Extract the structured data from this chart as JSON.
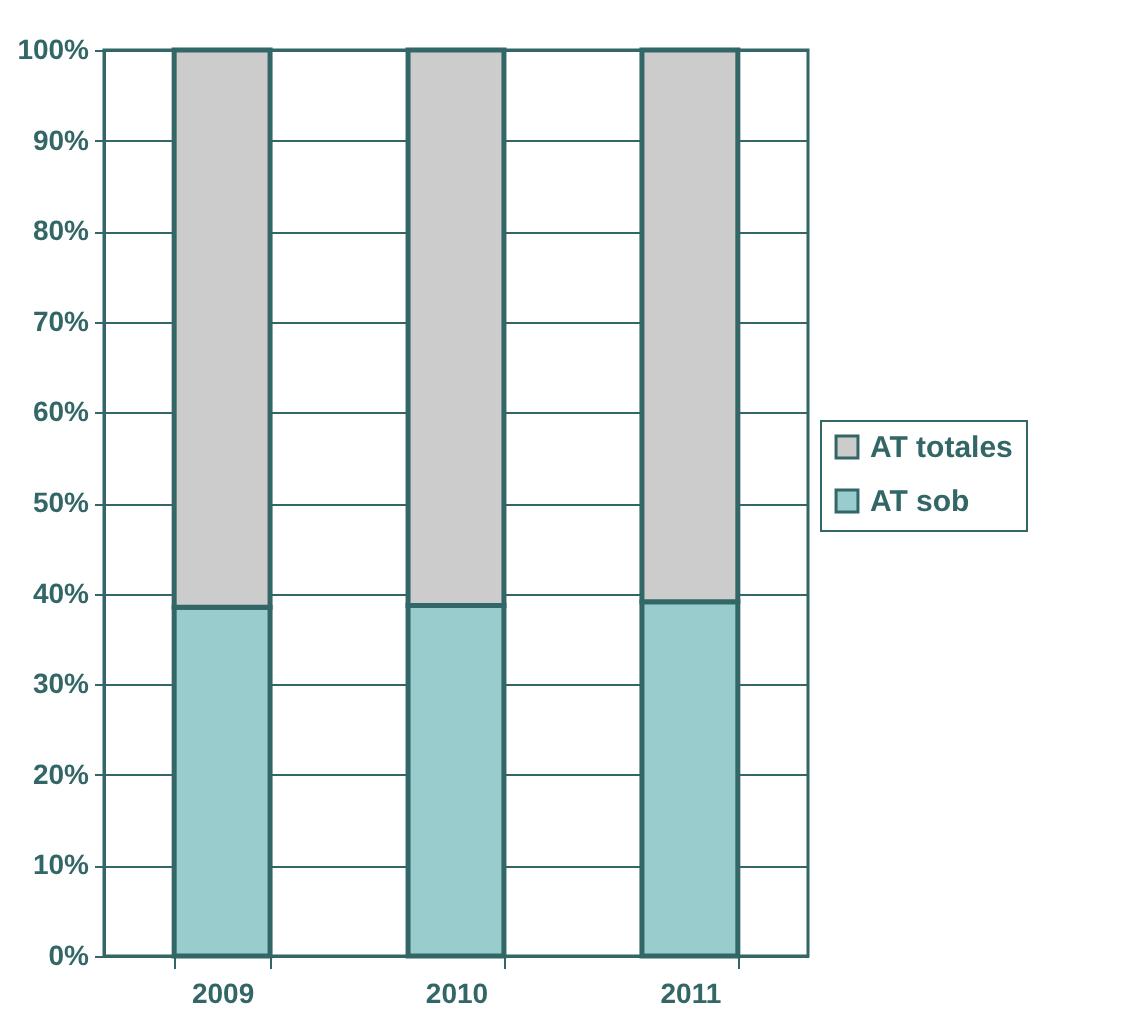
{
  "chart_data": {
    "type": "bar",
    "stacked": true,
    "categories": [
      "2009",
      "2010",
      "2011"
    ],
    "series": [
      {
        "name": "AT sob",
        "color": "#99cccc",
        "values": [
          38.5,
          38.7,
          39.1
        ]
      },
      {
        "name": "AT totales",
        "color": "#cccccc",
        "values": [
          61.5,
          61.3,
          60.9
        ]
      }
    ],
    "ylim": [
      0,
      100
    ],
    "yticks": [
      {
        "value": 0,
        "label": "0%"
      },
      {
        "value": 10,
        "label": "10%"
      },
      {
        "value": 20,
        "label": "20%"
      },
      {
        "value": 30,
        "label": "30%"
      },
      {
        "value": 40,
        "label": "40%"
      },
      {
        "value": 50,
        "label": "50%"
      },
      {
        "value": 60,
        "label": "60%"
      },
      {
        "value": 70,
        "label": "70%"
      },
      {
        "value": 80,
        "label": "80%"
      },
      {
        "value": 90,
        "label": "90%"
      },
      {
        "value": 100,
        "label": "100%"
      }
    ],
    "grid": "y",
    "legend": "right"
  }
}
